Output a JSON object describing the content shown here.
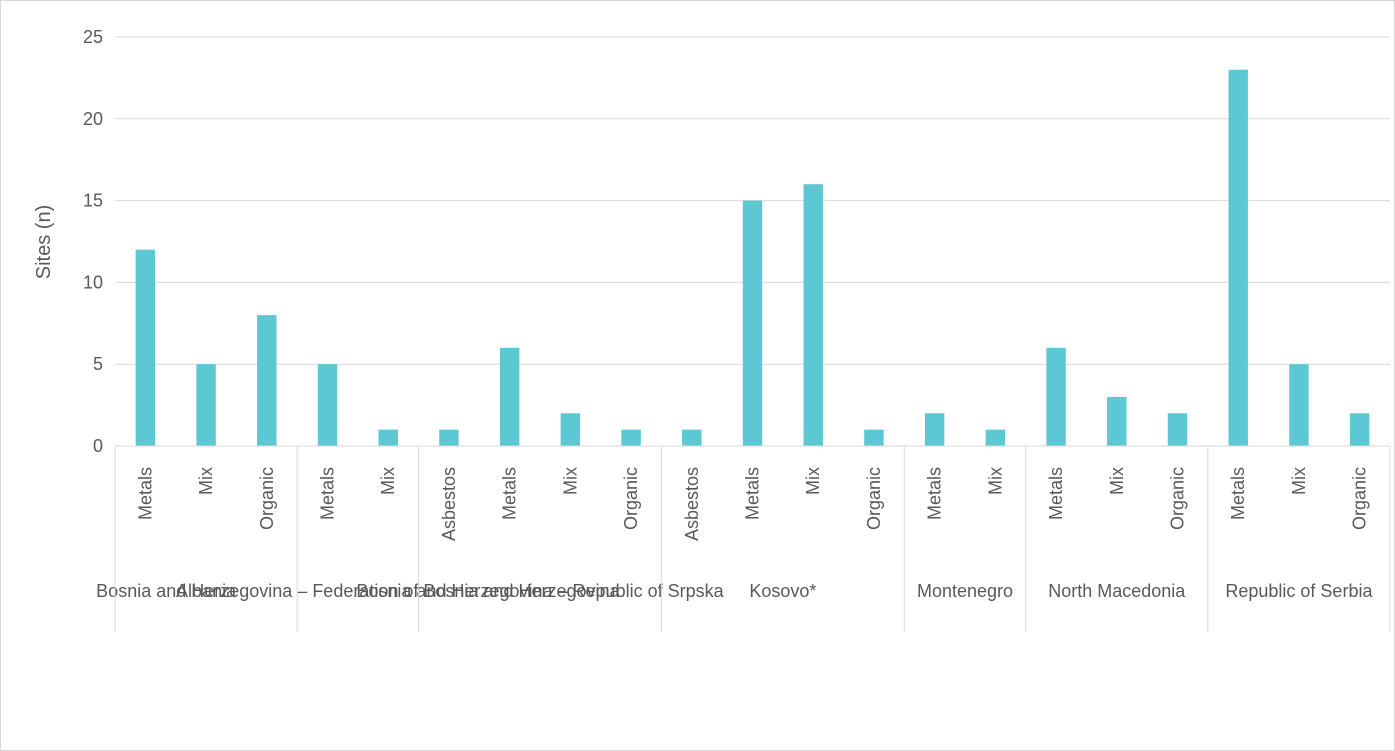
{
  "chart_data": {
    "type": "bar",
    "ylabel": "Sites (n)",
    "ylim": [
      0,
      25
    ],
    "yticks": [
      0,
      5,
      10,
      15,
      20,
      25
    ],
    "grid": true,
    "bar_color": "#5BC8D4",
    "groups": [
      {
        "name": "Albania",
        "bars": [
          {
            "label": "Metals",
            "value": 12
          },
          {
            "label": "Mix",
            "value": 5
          },
          {
            "label": "Organic",
            "value": 8
          }
        ]
      },
      {
        "name": "Bosnia and Herzegovina – Federation of Bosnia and Herzegovina",
        "bars": [
          {
            "label": "Metals",
            "value": 5
          },
          {
            "label": "Mix",
            "value": 1
          }
        ]
      },
      {
        "name": "Bosnia and Herzegovina – Republic of Srpska",
        "bars": [
          {
            "label": "Asbestos",
            "value": 1
          },
          {
            "label": "Metals",
            "value": 6
          },
          {
            "label": "Mix",
            "value": 2
          },
          {
            "label": "Organic",
            "value": 1
          }
        ]
      },
      {
        "name": "Kosovo*",
        "bars": [
          {
            "label": "Asbestos",
            "value": 1
          },
          {
            "label": "Metals",
            "value": 15
          },
          {
            "label": "Mix",
            "value": 16
          },
          {
            "label": "Organic",
            "value": 1
          }
        ]
      },
      {
        "name": "Montenegro",
        "bars": [
          {
            "label": "Metals",
            "value": 2
          },
          {
            "label": "Mix",
            "value": 1
          }
        ]
      },
      {
        "name": "North Macedonia",
        "bars": [
          {
            "label": "Metals",
            "value": 6
          },
          {
            "label": "Mix",
            "value": 3
          },
          {
            "label": "Organic",
            "value": 2
          }
        ]
      },
      {
        "name": "Republic of Serbia",
        "bars": [
          {
            "label": "Metals",
            "value": 23
          },
          {
            "label": "Mix",
            "value": 5
          },
          {
            "label": "Organic",
            "value": 2
          }
        ]
      }
    ]
  }
}
